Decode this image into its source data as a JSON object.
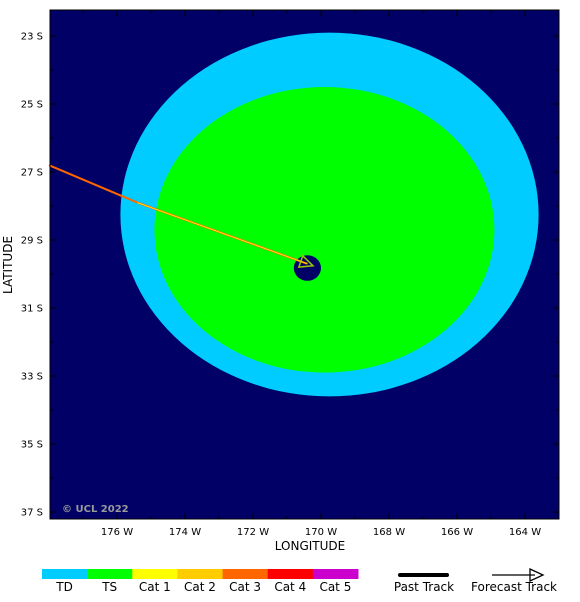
{
  "axes": {
    "xlabel": "LONGITUDE",
    "ylabel": "LATITUDE",
    "lon_ticks": [
      "176 W",
      "174 W",
      "172 W",
      "170 W",
      "168 W",
      "166 W",
      "164 W"
    ],
    "lat_ticks": [
      "23 S",
      "25 S",
      "27 S",
      "29 S",
      "31 S",
      "33 S",
      "35 S",
      "37 S"
    ]
  },
  "copyright": "© UCL 2022",
  "colors": {
    "ocean": "#000066",
    "TD": "#00ccff",
    "TS": "#00ff00",
    "Cat 1": "#ffff00",
    "Cat 2": "#ffcc00",
    "Cat 3": "#ff6600",
    "Cat 4": "#ff0000",
    "Cat 5": "#cc00cc",
    "track": "#ff6600",
    "track_inner": "#ffff00",
    "forecast_arrow": "#99cc00"
  },
  "legend": {
    "categories": [
      "TD",
      "TS",
      "Cat 1",
      "Cat 2",
      "Cat 3",
      "Cat 4",
      "Cat 5"
    ],
    "past_track": "Past Track",
    "forecast_track": "Forecast Track"
  },
  "storm": {
    "center": {
      "lon": -170.4,
      "lat": -29.8
    },
    "wind_field": [
      {
        "category": "TD",
        "lon_min": -175.9,
        "lon_max": -163.6,
        "lat_min": -33.6,
        "lat_max": -22.9
      },
      {
        "category": "TS",
        "lon_min": -174.9,
        "lon_max": -164.9,
        "lat_min": -32.9,
        "lat_max": -24.5
      }
    ],
    "eye": {
      "lon_min": -170.8,
      "lon_max": -170.0,
      "lat_min": -30.2,
      "lat_max": -29.45
    },
    "track": [
      {
        "lon": -178.0,
        "lat": -26.8
      },
      {
        "lon": -175.4,
        "lat": -27.9
      },
      {
        "lon": -170.4,
        "lat": -29.7
      }
    ]
  }
}
